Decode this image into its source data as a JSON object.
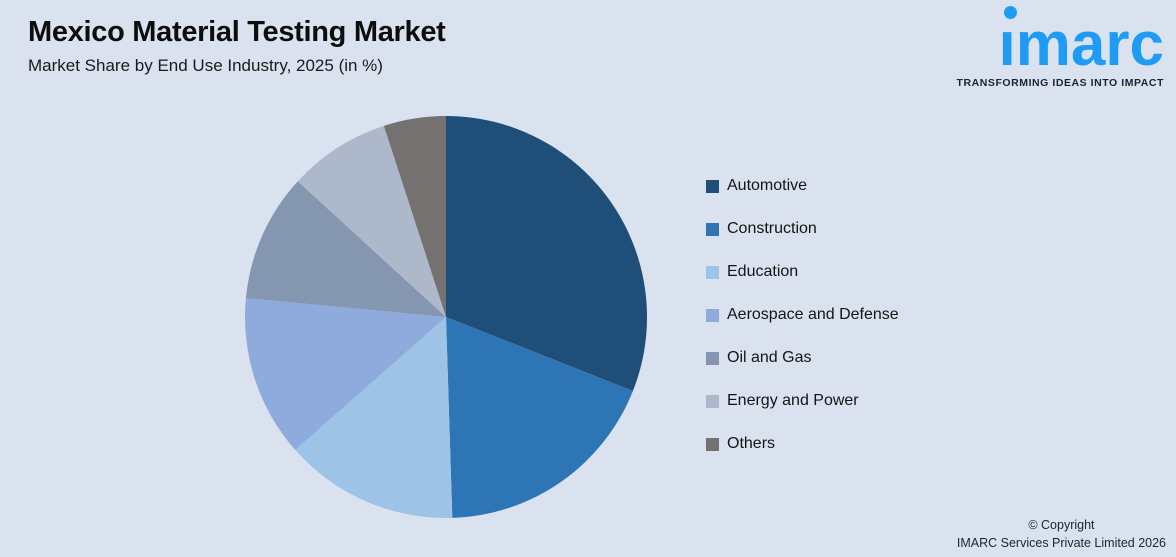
{
  "header": {
    "title": "Mexico Material Testing Market",
    "subtitle": "Market Share by End Use Industry, 2025 (in %)"
  },
  "logo": {
    "brand_text": "imarc",
    "brand_color": "#1e9bf5",
    "tagline": "TRANSFORMING IDEAS INTO IMPACT"
  },
  "footer": {
    "line1": "© Copyright",
    "line2": "IMARC Services Private Limited 2026"
  },
  "chart_data": {
    "type": "pie",
    "title": "Mexico Material Testing Market",
    "subtitle": "Market Share by End Use Industry, 2025 (in %)",
    "start_angle_deg": 0,
    "direction": "clockwise",
    "data_labels_shown": false,
    "legend_position": "right",
    "background_color": "#dae2f0",
    "segments": [
      {
        "label": "Automotive",
        "value": 31.0,
        "color": "#1f4e79"
      },
      {
        "label": "Construction",
        "value": 18.5,
        "color": "#2e75b6"
      },
      {
        "label": "Education",
        "value": 14.0,
        "color": "#9dc3e6"
      },
      {
        "label": "Aerospace and Defense",
        "value": 13.0,
        "color": "#8faadc"
      },
      {
        "label": "Oil and Gas",
        "value": 10.3,
        "color": "#8496b0"
      },
      {
        "label": "Energy and Power",
        "value": 8.2,
        "color": "#adb9ca"
      },
      {
        "label": "Others",
        "value": 5.0,
        "color": "#767171"
      }
    ]
  }
}
